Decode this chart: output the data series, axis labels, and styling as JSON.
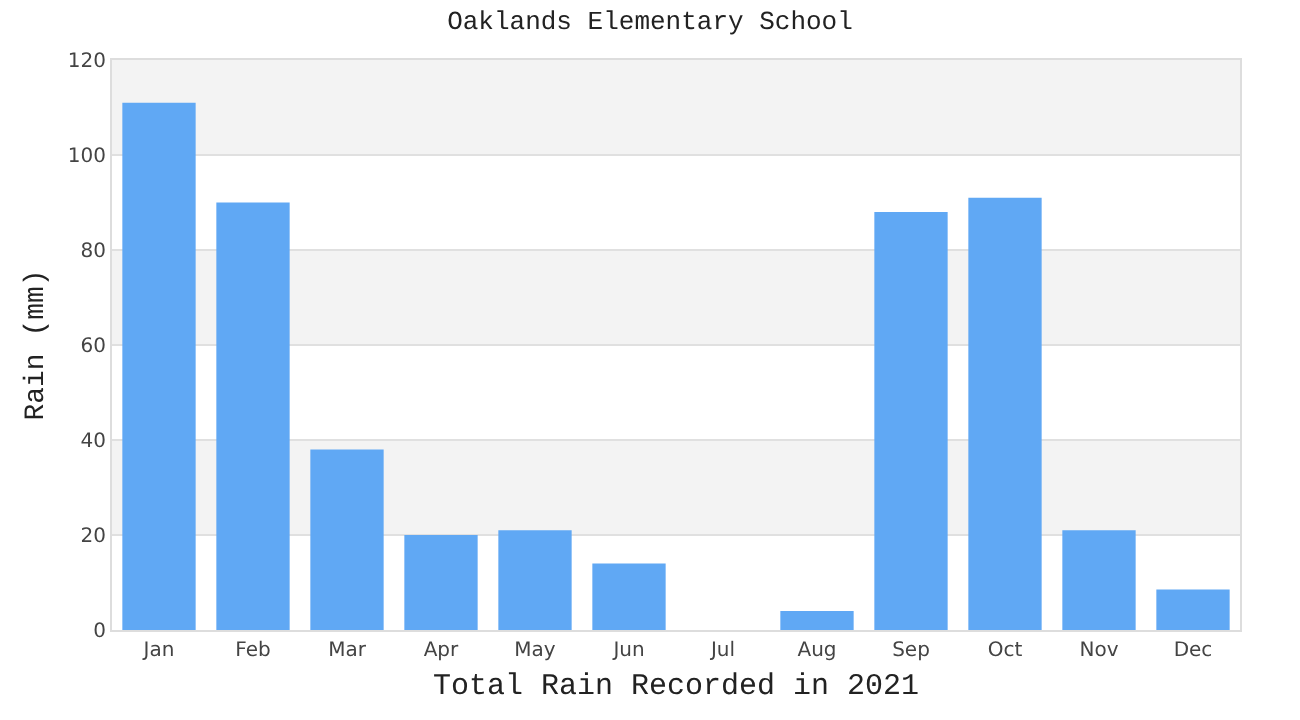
{
  "chart_data": {
    "type": "bar",
    "title": "Oaklands Elementary School",
    "xlabel": "Total Rain Recorded in 2021",
    "ylabel": "Rain (mm)",
    "categories": [
      "Jan",
      "Feb",
      "Mar",
      "Apr",
      "May",
      "Jun",
      "Jul",
      "Aug",
      "Sep",
      "Oct",
      "Nov",
      "Dec"
    ],
    "values": [
      111,
      90,
      38,
      20,
      21,
      14,
      0,
      4,
      88,
      91,
      21,
      8.5
    ],
    "color": "#60a8f4",
    "ylim": [
      0,
      120
    ],
    "yticks": [
      0,
      20,
      40,
      60,
      80,
      100,
      120
    ],
    "grid": "y"
  }
}
